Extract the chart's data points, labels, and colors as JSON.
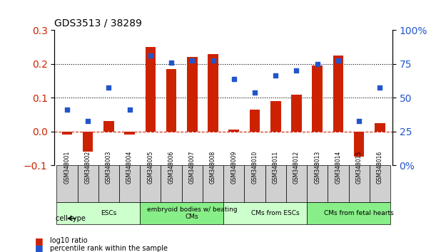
{
  "title": "GDS3513 / 38289",
  "samples": [
    "GSM348001",
    "GSM348002",
    "GSM348003",
    "GSM348004",
    "GSM348005",
    "GSM348006",
    "GSM348007",
    "GSM348008",
    "GSM348009",
    "GSM348010",
    "GSM348011",
    "GSM348012",
    "GSM348013",
    "GSM348014",
    "GSM348015",
    "GSM348016"
  ],
  "log10_ratio": [
    -0.01,
    -0.06,
    0.03,
    -0.01,
    0.25,
    0.185,
    0.22,
    0.23,
    0.005,
    0.065,
    0.09,
    0.11,
    0.195,
    0.225,
    -0.075,
    0.025
  ],
  "percentile_rank": [
    0.065,
    0.03,
    0.13,
    0.065,
    0.225,
    0.205,
    0.21,
    0.21,
    0.155,
    0.115,
    0.165,
    0.18,
    0.2,
    0.21,
    0.03,
    0.13
  ],
  "ylim_left": [
    -0.1,
    0.3
  ],
  "ylim_right": [
    0,
    100
  ],
  "bar_color": "#cc2200",
  "dot_color": "#2255cc",
  "grid_lines": [
    0.1,
    0.2
  ],
  "zero_line_color": "#cc2200",
  "cell_type_groups": [
    {
      "label": "ESCs",
      "start": 0,
      "end": 4,
      "color": "#ccffcc"
    },
    {
      "label": "embryoid bodies w/ beating\nCMs",
      "start": 4,
      "end": 8,
      "color": "#88ee88"
    },
    {
      "label": "CMs from ESCs",
      "start": 8,
      "end": 12,
      "color": "#ccffcc"
    },
    {
      "label": "CMs from fetal hearts",
      "start": 12,
      "end": 16,
      "color": "#88ee88"
    }
  ],
  "legend_bar_label": "log10 ratio",
  "legend_dot_label": "percentile rank within the sample",
  "ylabel_left": "",
  "ylabel_right": ""
}
